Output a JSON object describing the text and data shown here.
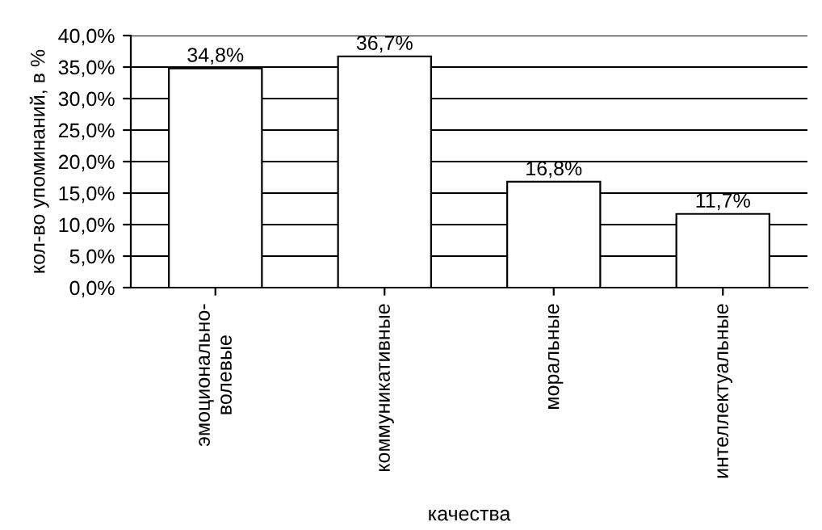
{
  "chart_data": {
    "type": "bar",
    "xlabel": "качества",
    "ylabel": "кол-во упоминаний, в %",
    "categories": [
      "эмоционально-\nволевые",
      "коммуникативные",
      "моральные",
      "интеллектуальные"
    ],
    "values": [
      34.8,
      36.7,
      16.8,
      11.7
    ],
    "value_labels": [
      "34,8%",
      "36,7%",
      "16,8%",
      "11,7%"
    ],
    "color": "#ffffff",
    "ylim": [
      0,
      40
    ],
    "yticks": [
      {
        "value": 0,
        "label": "0,0%"
      },
      {
        "value": 5,
        "label": "5,0%"
      },
      {
        "value": 10,
        "label": "10,0%"
      },
      {
        "value": 15,
        "label": "15,0%"
      },
      {
        "value": 20,
        "label": "20,0%"
      },
      {
        "value": 25,
        "label": "25,0%"
      },
      {
        "value": 30,
        "label": "30,0%"
      },
      {
        "value": 35,
        "label": "35,0%"
      },
      {
        "value": 40,
        "label": "40,0%"
      }
    ],
    "grid": "y",
    "legend": false
  }
}
